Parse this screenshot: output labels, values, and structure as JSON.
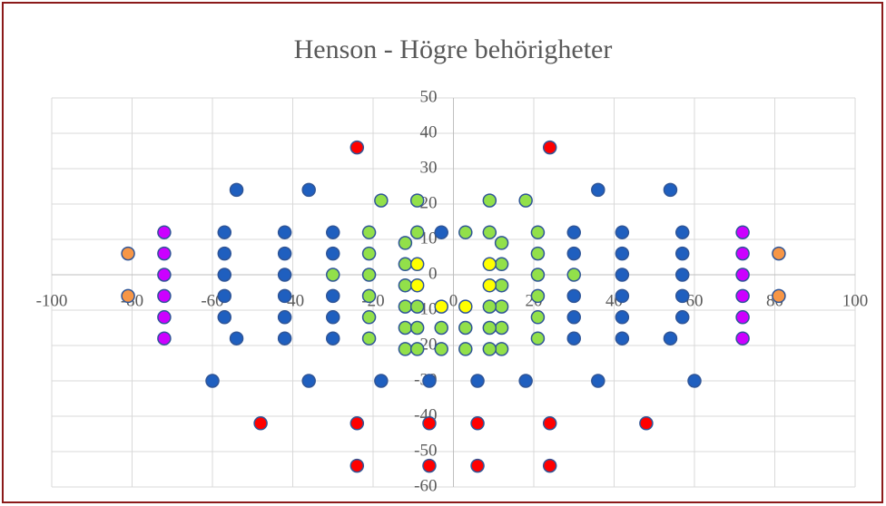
{
  "chart_data": {
    "type": "scatter",
    "title": "Henson - Högre behörigheter",
    "xlim": [
      -100,
      100
    ],
    "xticks": [
      -100,
      -80,
      -60,
      -40,
      -20,
      0,
      20,
      40,
      60,
      80,
      100
    ],
    "ylim": [
      -60,
      50
    ],
    "yticks": [
      -60,
      -50,
      -40,
      -30,
      -20,
      -10,
      0,
      10,
      20,
      30,
      40,
      50
    ],
    "grid": true,
    "series": [
      {
        "color": "#1f5fbf",
        "x": [
          -54,
          -36,
          36,
          54,
          -57,
          -42,
          -30,
          -3,
          30,
          42,
          57,
          -57,
          -42,
          -30,
          30,
          42,
          57,
          -57,
          -42,
          42,
          57,
          -57,
          -42,
          -30,
          30,
          42,
          57,
          -57,
          -42,
          -30,
          30,
          42,
          57,
          -54,
          -42,
          -30,
          30,
          42,
          54,
          -60,
          -36,
          -18,
          -6,
          6,
          18,
          36,
          60
        ],
        "values": [
          24,
          24,
          24,
          24,
          12,
          12,
          12,
          12,
          12,
          12,
          12,
          6,
          6,
          6,
          6,
          6,
          6,
          0,
          0,
          0,
          0,
          -6,
          -6,
          -6,
          -6,
          -6,
          -6,
          -12,
          -12,
          -12,
          -12,
          -12,
          -12,
          -18,
          -18,
          -18,
          -18,
          -18,
          -18,
          -30,
          -30,
          -30,
          -30,
          -30,
          -30,
          -30,
          -30
        ]
      },
      {
        "color": "#92e04a",
        "x": [
          -18,
          -9,
          9,
          18,
          -21,
          -21,
          -21,
          -21,
          -21,
          -21,
          21,
          21,
          21,
          21,
          21,
          21,
          -30,
          30,
          -12,
          -12,
          -12,
          -12,
          -12,
          -12,
          12,
          12,
          12,
          12,
          12,
          12,
          -9,
          -9,
          -9,
          -9,
          -3,
          -3,
          3,
          3,
          3,
          9,
          9,
          9,
          9
        ],
        "values": [
          21,
          21,
          21,
          21,
          12,
          6,
          0,
          -6,
          -12,
          -18,
          12,
          6,
          0,
          -6,
          -12,
          -18,
          0,
          0,
          9,
          3,
          -3,
          -9,
          -15,
          -21,
          9,
          3,
          -3,
          -9,
          -15,
          -21,
          12,
          -9,
          -15,
          -21,
          -15,
          -21,
          12,
          -15,
          -21,
          12,
          -9,
          -15,
          -21
        ]
      },
      {
        "color": "#ffff00",
        "x": [
          -9,
          -9,
          -3,
          3,
          9,
          9
        ],
        "values": [
          3,
          -3,
          -9,
          -9,
          3,
          -3
        ]
      },
      {
        "color": "#ff0000",
        "x": [
          -24,
          24,
          -48,
          -24,
          -6,
          6,
          24,
          48,
          -24,
          -6,
          6,
          24
        ],
        "values": [
          36,
          36,
          -42,
          -42,
          -42,
          -42,
          -42,
          -42,
          -54,
          -54,
          -54,
          -54
        ]
      },
      {
        "color": "#cc00ff",
        "x": [
          -72,
          -72,
          -72,
          -72,
          -72,
          -72,
          72,
          72,
          72,
          72,
          72,
          72
        ],
        "values": [
          12,
          6,
          0,
          -6,
          -12,
          -18,
          12,
          6,
          0,
          -6,
          -12,
          -18
        ]
      },
      {
        "color": "#f79646",
        "x": [
          -81,
          -81,
          81,
          81
        ],
        "values": [
          6,
          -6,
          6,
          -6
        ]
      }
    ]
  }
}
